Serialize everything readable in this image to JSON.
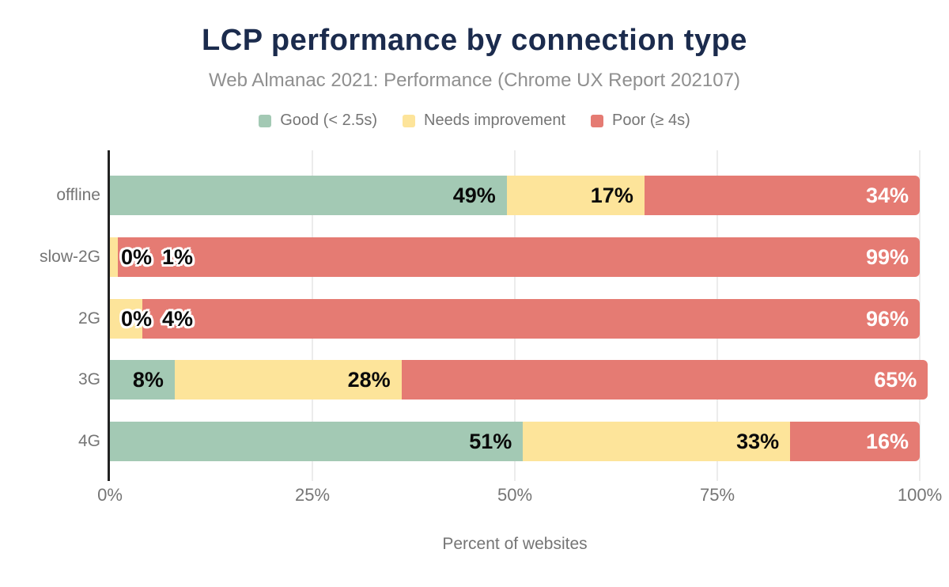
{
  "title": "LCP performance by connection type",
  "subtitle": "Web Almanac 2021: Performance (Chrome UX Report 202107)",
  "chart_data": {
    "type": "bar",
    "stacked": true,
    "orientation": "horizontal",
    "title": "LCP performance by connection type",
    "subtitle": "Web Almanac 2021: Performance (Chrome UX Report 202107)",
    "categories": [
      "offline",
      "slow-2G",
      "2G",
      "3G",
      "4G"
    ],
    "series": [
      {
        "name": "Good (< 2.5s)",
        "key": "good",
        "color": "#a3c9b4",
        "values": [
          49,
          0,
          0,
          8,
          51
        ]
      },
      {
        "name": "Needs improvement",
        "key": "needs-improvement",
        "color": "#fde49a",
        "values": [
          17,
          1,
          4,
          28,
          33
        ]
      },
      {
        "name": "Poor (≥ 4s)",
        "key": "poor",
        "color": "#e57b73",
        "values": [
          34,
          99,
          96,
          65,
          16
        ]
      }
    ],
    "xlabel": "Percent of websites",
    "ylabel": "",
    "x_ticks": [
      "0%",
      "25%",
      "50%",
      "75%",
      "100%"
    ],
    "x_tick_values": [
      0,
      25,
      50,
      75,
      100
    ],
    "xlim": [
      0,
      100
    ],
    "legend_position": "top",
    "grid": "vertical",
    "label_suffix": "%"
  },
  "colors": {
    "title_text": "#1b2b4d",
    "subtitle_text": "#8f8f8f",
    "muted_text": "#757575",
    "axis_line": "#222222",
    "gridline": "#ececec",
    "label_dark": "#0a0a0a",
    "label_light": "#ffffff",
    "background": "#ffffff"
  }
}
